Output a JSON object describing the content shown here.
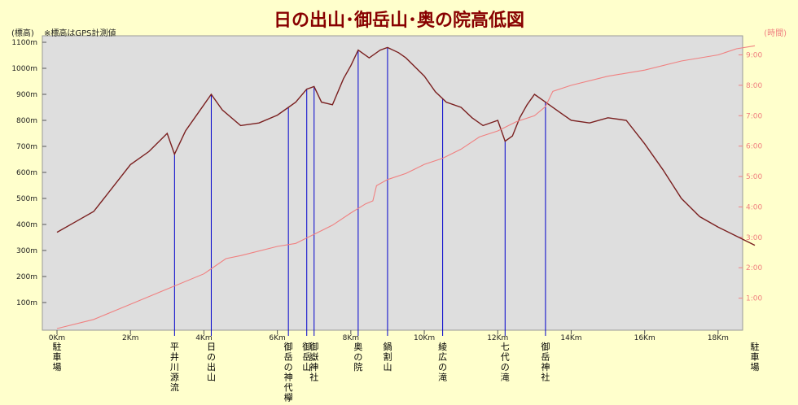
{
  "chart_data": {
    "type": "line",
    "title": "日の出山･御岳山･奥の院高低図",
    "left_axis_title": "(標高)",
    "note": "※標高はGPS計測値",
    "right_axis_title": "(時間)",
    "x_ticks": [
      "0Km",
      "2Km",
      "4Km",
      "6Km",
      "8Km",
      "10Km",
      "12Km",
      "14Km",
      "16Km",
      "18Km"
    ],
    "x_tick_values": [
      0,
      2,
      4,
      6,
      8,
      10,
      12,
      14,
      16,
      18
    ],
    "y_ticks": [
      "100m",
      "200m",
      "300m",
      "400m",
      "500m",
      "600m",
      "700m",
      "800m",
      "900m",
      "1000m",
      "1100m"
    ],
    "y_tick_values": [
      100,
      200,
      300,
      400,
      500,
      600,
      700,
      800,
      900,
      1000,
      1100
    ],
    "y2_ticks": [
      "1:00",
      "2:00",
      "3:00",
      "4:00",
      "5:00",
      "6:00",
      "7:00",
      "8:00",
      "9:00"
    ],
    "y2_tick_values": [
      1,
      2,
      3,
      4,
      5,
      6,
      7,
      8,
      9
    ],
    "xlim": [
      0,
      19
    ],
    "ylim": [
      0,
      1100
    ],
    "y2lim": [
      0,
      9.2
    ],
    "grid": false,
    "colors": {
      "background": "#FFFFCC",
      "plot": "#DEDEDE",
      "elevation": "#7A1F1F",
      "time": "#F08080",
      "marker": "#0000CC",
      "right_axis": "#F08080",
      "title": "#880000"
    },
    "series": [
      {
        "axis": "left",
        "x": [
          0,
          0.5,
          1,
          1.5,
          2,
          2.5,
          3,
          3.2,
          3.5,
          4,
          4.2,
          4.5,
          5,
          5.5,
          6,
          6.3,
          6.5,
          6.8,
          7,
          7.2,
          7.5,
          7.8,
          8,
          8.2,
          8.5,
          8.8,
          9,
          9.3,
          9.5,
          10,
          10.3,
          10.6,
          11,
          11.3,
          11.6,
          12,
          12.2,
          12.4,
          12.6,
          12.8,
          13,
          13.3,
          13.7,
          14,
          14.5,
          15,
          15.5,
          16,
          16.5,
          17,
          17.5,
          18,
          18.5,
          19
        ],
        "y": [
          370,
          410,
          450,
          540,
          630,
          680,
          750,
          670,
          760,
          860,
          900,
          840,
          780,
          790,
          820,
          850,
          870,
          920,
          930,
          870,
          860,
          960,
          1010,
          1070,
          1040,
          1070,
          1080,
          1060,
          1040,
          970,
          910,
          870,
          850,
          810,
          780,
          800,
          720,
          740,
          810,
          860,
          900,
          870,
          830,
          800,
          790,
          810,
          800,
          710,
          610,
          500,
          430,
          390,
          355,
          320
        ]
      },
      {
        "axis": "right",
        "x": [
          0,
          1,
          2,
          3,
          4,
          4.6,
          5,
          6,
          6.5,
          7,
          7.5,
          8,
          8.4,
          8.6,
          8.7,
          9,
          9.5,
          10,
          10.5,
          11,
          11.5,
          12,
          12.5,
          13,
          13.3,
          13.5,
          14,
          15,
          16,
          17,
          18,
          18.5,
          19
        ],
        "y": [
          0,
          0.3,
          0.8,
          1.3,
          1.8,
          2.3,
          2.4,
          2.7,
          2.8,
          3.1,
          3.4,
          3.8,
          4.1,
          4.2,
          4.7,
          4.9,
          5.1,
          5.4,
          5.6,
          5.9,
          6.3,
          6.5,
          6.8,
          7.0,
          7.3,
          7.8,
          8.0,
          8.3,
          8.5,
          8.8,
          9.0,
          9.2,
          9.3
        ]
      }
    ],
    "waypoints": [
      {
        "label": "駐車場",
        "x": 0,
        "line": false
      },
      {
        "label": "平井川源流",
        "x": 3.2,
        "line": true
      },
      {
        "label": "日の出山",
        "x": 4.2,
        "line": true
      },
      {
        "label": "御岳の神代欅",
        "x": 6.3,
        "line": true
      },
      {
        "label": "御岳山",
        "x": 6.8,
        "line": true
      },
      {
        "label": "御嶽神社",
        "x": 7.0,
        "line": true
      },
      {
        "label": "奥の院",
        "x": 8.2,
        "line": true
      },
      {
        "label": "鍋割山",
        "x": 9.0,
        "line": true
      },
      {
        "label": "綾広の滝",
        "x": 10.5,
        "line": true
      },
      {
        "label": "七代の滝",
        "x": 12.2,
        "line": true
      },
      {
        "label": "御岳神社",
        "x": 13.3,
        "line": true
      },
      {
        "label": "駐車場",
        "x": 19,
        "line": false
      }
    ]
  }
}
